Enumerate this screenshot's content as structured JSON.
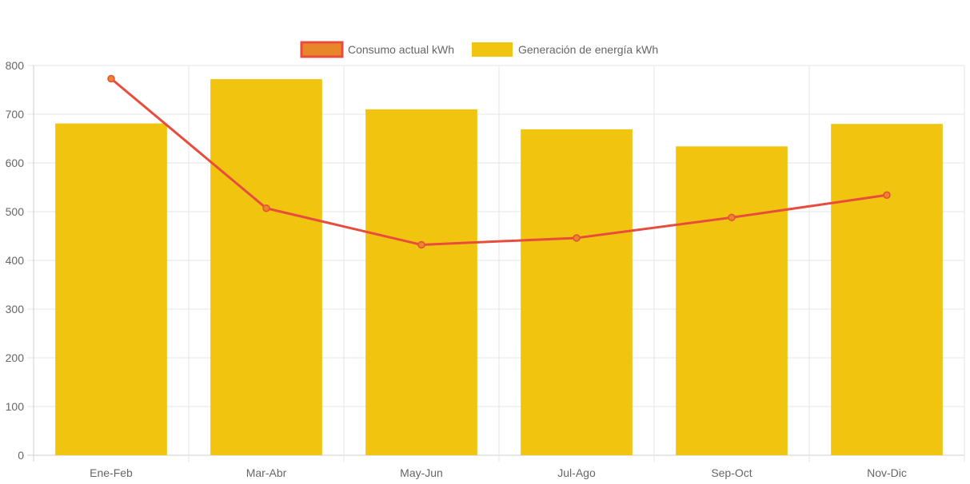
{
  "chart_data": {
    "type": "bar",
    "categories": [
      "Ene-Feb",
      "Mar-Abr",
      "May-Jun",
      "Jul-Ago",
      "Sep-Oct",
      "Nov-Dic"
    ],
    "series": [
      {
        "name": "Consumo actual kWh",
        "type": "line",
        "values": [
          773,
          507,
          432,
          446,
          488,
          534
        ],
        "border_color": "#e84c3d",
        "point_color": "#e8862a"
      },
      {
        "name": "Generación de energía kWh",
        "type": "bar",
        "values": [
          681,
          772,
          710,
          669,
          634,
          680
        ],
        "color": "#f1c40f"
      }
    ],
    "ylim": [
      0,
      800
    ],
    "yticks": [
      0,
      100,
      200,
      300,
      400,
      500,
      600,
      700,
      800
    ],
    "grid": true,
    "legend_position": "top-center"
  }
}
